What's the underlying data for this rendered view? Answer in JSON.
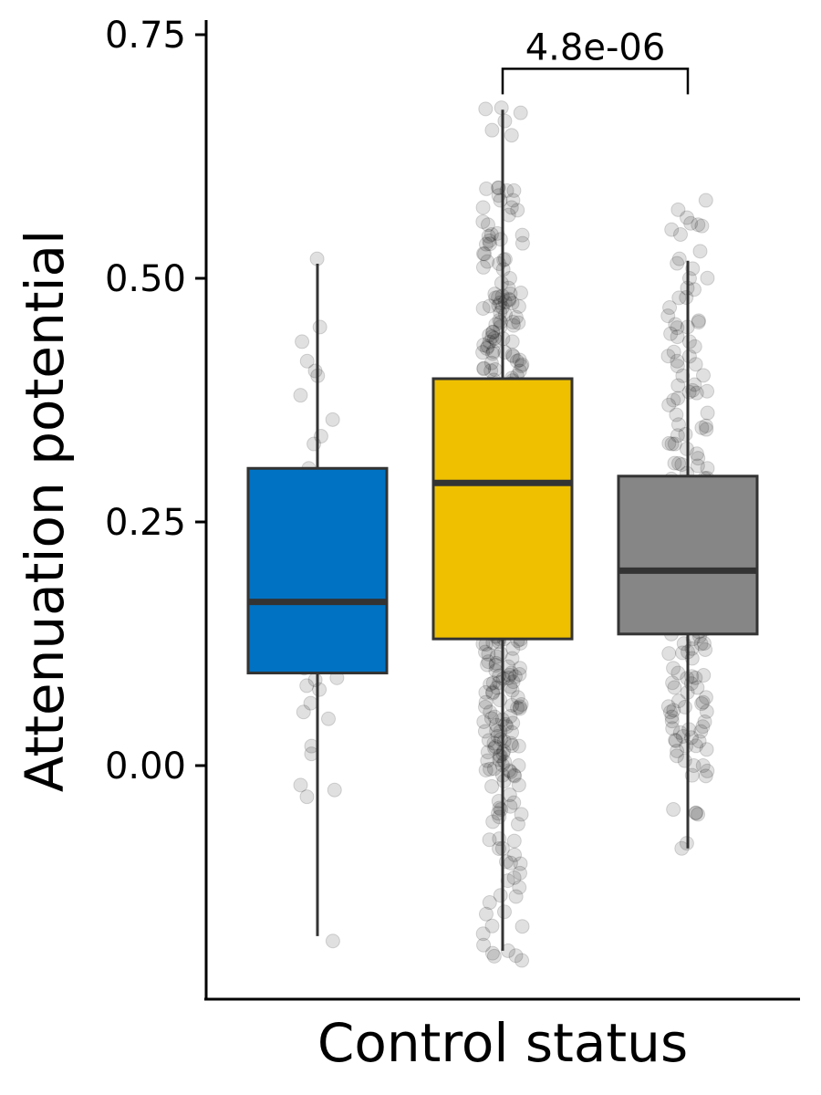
{
  "chart_data": {
    "type": "box",
    "title": "",
    "xlabel": "Control status",
    "ylabel": "Attenuation potential",
    "ylim": [
      -0.24,
      0.765
    ],
    "y_ticks": [
      0.0,
      0.25,
      0.5,
      0.75
    ],
    "y_tick_labels": [
      "0.00",
      "0.25",
      "0.50",
      "0.75"
    ],
    "grid": false,
    "legend": "none",
    "jitter_point_color": "#000000",
    "jitter_point_opacity": 0.12,
    "groups": [
      {
        "color": "#0072c3",
        "whisker_low": -0.175,
        "q1": 0.095,
        "median": 0.168,
        "q3": 0.305,
        "whisker_high": 0.515,
        "points": [
          0.52,
          0.45,
          0.435,
          0.415,
          0.405,
          0.4,
          0.38,
          0.355,
          0.338,
          0.33,
          0.305,
          0.29,
          0.29,
          0.268,
          0.262,
          0.256,
          0.24,
          0.235,
          0.222,
          0.2,
          0.19,
          0.182,
          0.176,
          0.168,
          0.16,
          0.155,
          0.149,
          0.14,
          0.132,
          0.124,
          0.118,
          0.112,
          0.1,
          0.09,
          0.088,
          0.082,
          0.078,
          0.064,
          0.055,
          0.048,
          0.02,
          0.012,
          -0.02,
          -0.025,
          -0.032,
          -0.18
        ]
      },
      {
        "color": "#efc000",
        "whisker_low": -0.19,
        "q1": 0.13,
        "median": 0.29,
        "q3": 0.397,
        "whisker_high": 0.673,
        "points": [
          0.675,
          0.652,
          0.59,
          0.585,
          0.58,
          0.565,
          0.555,
          0.545,
          0.54,
          0.535,
          0.525,
          0.515,
          0.5,
          0.49,
          0.485,
          0.48,
          0.475,
          0.47,
          0.465,
          0.46,
          0.455,
          0.45,
          0.445,
          0.44,
          0.435,
          0.43,
          0.425,
          0.42,
          0.415,
          0.41,
          0.405,
          0.4,
          0.395,
          0.39,
          0.385,
          0.38,
          0.375,
          0.37,
          0.365,
          0.362,
          0.36,
          0.358,
          0.355,
          0.352,
          0.35,
          0.345,
          0.34,
          0.335,
          0.33,
          0.325,
          0.32,
          0.315,
          0.31,
          0.305,
          0.302,
          0.3,
          0.298,
          0.295,
          0.292,
          0.29,
          0.285,
          0.28,
          0.275,
          0.27,
          0.265,
          0.26,
          0.255,
          0.25,
          0.245,
          0.24,
          0.235,
          0.23,
          0.225,
          0.22,
          0.215,
          0.21,
          0.205,
          0.2,
          0.195,
          0.19,
          0.185,
          0.18,
          0.175,
          0.17,
          0.165,
          0.16,
          0.155,
          0.15,
          0.145,
          0.14,
          0.135,
          0.13,
          0.125,
          0.12,
          0.115,
          0.11,
          0.105,
          0.1,
          0.095,
          0.09,
          0.085,
          0.08,
          0.075,
          0.07,
          0.065,
          0.06,
          0.055,
          0.05,
          0.045,
          0.04,
          0.035,
          0.03,
          0.025,
          0.02,
          0.015,
          0.01,
          0.005,
          0.0,
          -0.005,
          -0.01,
          -0.02,
          -0.03,
          -0.045,
          -0.05,
          -0.06,
          -0.075,
          -0.085,
          -0.1,
          -0.115,
          -0.125,
          -0.15,
          -0.165,
          -0.19,
          -0.195
        ],
        "jitter_multiplier": 3
      },
      {
        "color": "#868686",
        "whisker_low": -0.085,
        "q1": 0.135,
        "median": 0.2,
        "q3": 0.297,
        "whisker_high": 0.518,
        "points": [
          0.58,
          0.555,
          0.55,
          0.545,
          0.52,
          0.51,
          0.5,
          0.49,
          0.48,
          0.47,
          0.455,
          0.45,
          0.44,
          0.435,
          0.43,
          0.42,
          0.415,
          0.41,
          0.4,
          0.39,
          0.385,
          0.375,
          0.37,
          0.36,
          0.35,
          0.345,
          0.34,
          0.33,
          0.325,
          0.32,
          0.31,
          0.305,
          0.3,
          0.295,
          0.29,
          0.285,
          0.28,
          0.275,
          0.27,
          0.265,
          0.26,
          0.255,
          0.25,
          0.245,
          0.24,
          0.235,
          0.23,
          0.225,
          0.22,
          0.215,
          0.21,
          0.205,
          0.2,
          0.198,
          0.195,
          0.19,
          0.185,
          0.18,
          0.175,
          0.17,
          0.165,
          0.16,
          0.155,
          0.15,
          0.145,
          0.14,
          0.135,
          0.13,
          0.125,
          0.12,
          0.115,
          0.11,
          0.1,
          0.095,
          0.09,
          0.085,
          0.08,
          0.075,
          0.07,
          0.065,
          0.06,
          0.055,
          0.05,
          0.045,
          0.04,
          0.035,
          0.03,
          0.025,
          0.02,
          0.015,
          0.01,
          0.005,
          0.0,
          -0.01,
          -0.045,
          -0.05,
          -0.085
        ],
        "jitter_multiplier": 2
      }
    ],
    "comparisons": [
      {
        "from_group": 2,
        "to_group": 3,
        "label": "4.8e-06",
        "y": 0.715
      }
    ]
  }
}
